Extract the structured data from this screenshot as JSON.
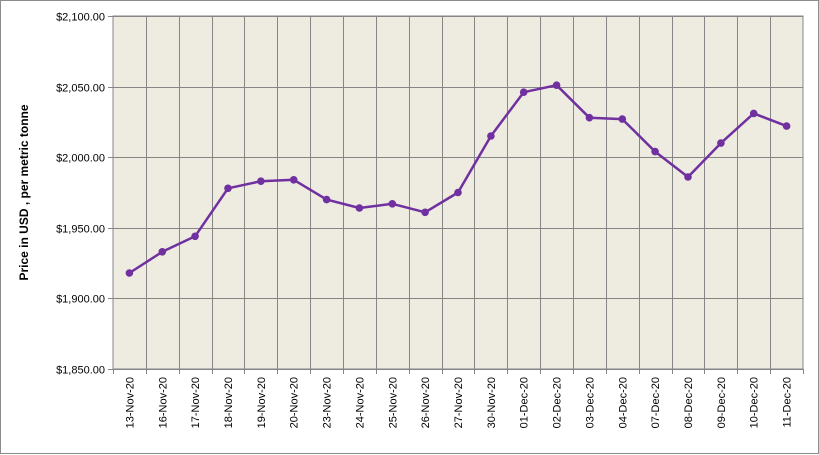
{
  "chart_data": {
    "type": "line",
    "title": "",
    "xlabel": "",
    "ylabel": "Price in USD , per metric tonne",
    "ylim": [
      1850,
      2100
    ],
    "y_ticks": [
      "$1,850.00",
      "$1,900.00",
      "$1,950.00",
      "$2,000.00",
      "$2,050.00",
      "$2,100.00"
    ],
    "categories": [
      "13-Nov-20",
      "16-Nov-20",
      "17-Nov-20",
      "18-Nov-20",
      "19-Nov-20",
      "20-Nov-20",
      "23-Nov-20",
      "24-Nov-20",
      "25-Nov-20",
      "26-Nov-20",
      "27-Nov-20",
      "30-Nov-20",
      "01-Dec-20",
      "02-Dec-20",
      "03-Dec-20",
      "04-Dec-20",
      "07-Dec-20",
      "08-Dec-20",
      "09-Dec-20",
      "10-Dec-20",
      "11-Dec-20"
    ],
    "series": [
      {
        "values": [
          1918,
          1933,
          1944,
          1978,
          1983,
          1984,
          1970,
          1964,
          1967,
          1961,
          1975,
          2015,
          2046,
          2051,
          2028,
          2027,
          2004,
          1986,
          2010,
          2031,
          2022
        ]
      }
    ],
    "grid": true,
    "legend": "none",
    "colors": {
      "line": "#7030A0",
      "plot_background": "#EEEBE1",
      "gridline": "#868686"
    }
  }
}
